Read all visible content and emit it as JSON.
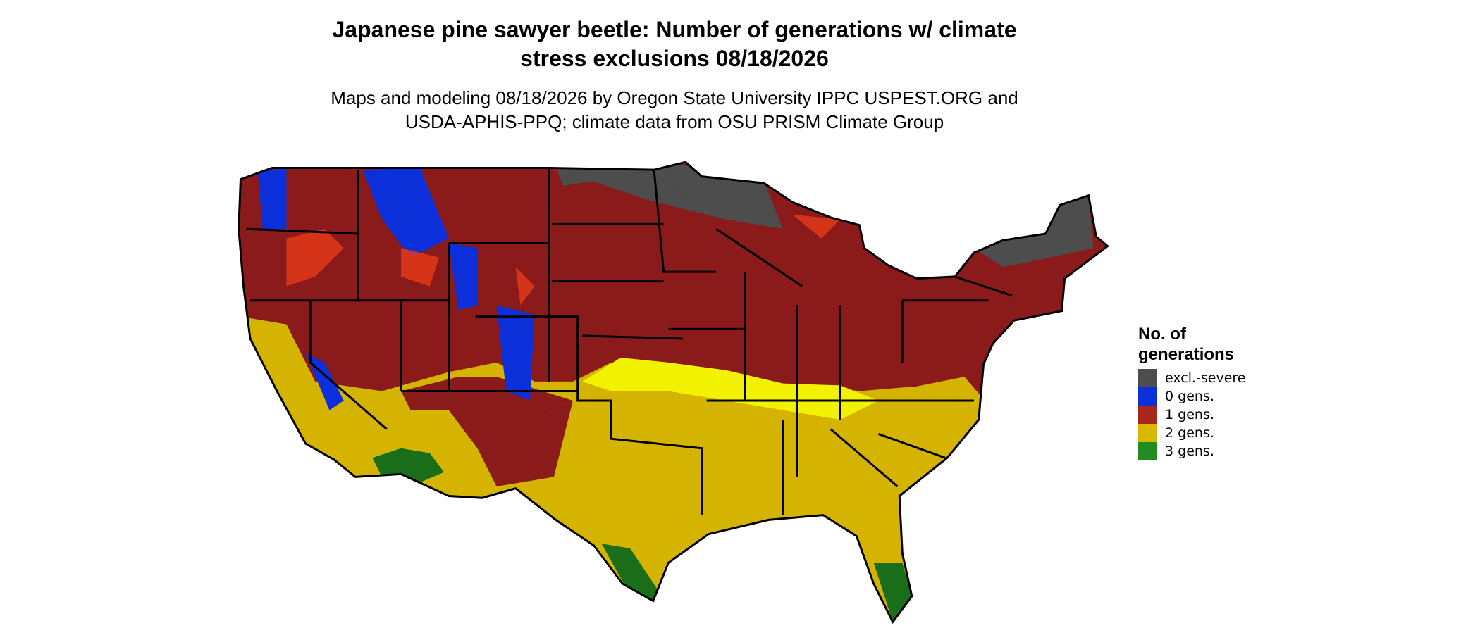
{
  "title": "Japanese pine sawyer beetle: Number of generations w/ climate stress exclusions 08/18/2026",
  "subtitle": "Maps and modeling 08/18/2026 by Oregon State University IPPC USPEST.ORG and USDA-APHIS-PPQ; climate data from OSU PRISM Climate Group",
  "legend": {
    "title": "No. of generations",
    "items": [
      {
        "label": "excl.-severe",
        "color": "#4d4d4d"
      },
      {
        "label": "0 gens.",
        "color": "#0b2fd8"
      },
      {
        "label": "1 gens.",
        "color": "#a8261a"
      },
      {
        "label": "2 gens.",
        "color": "#d8b800"
      },
      {
        "label": "3 gens.",
        "color": "#228b22"
      }
    ]
  }
}
